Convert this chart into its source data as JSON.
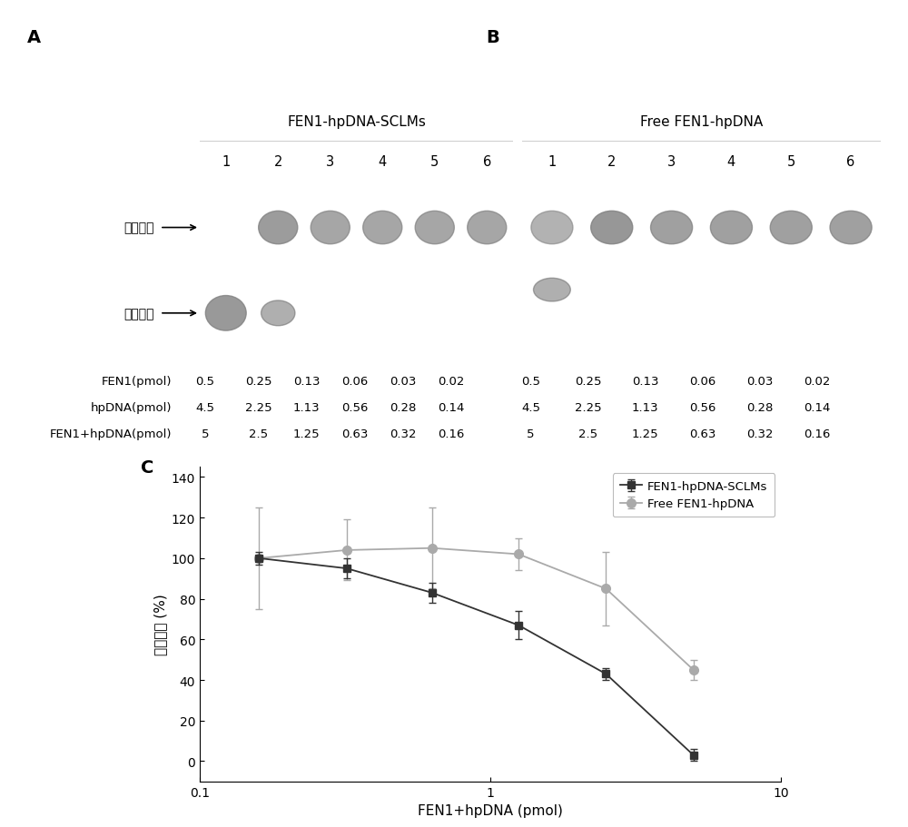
{
  "panel_A_title": "FEN1-hpDNA-SCLMs",
  "panel_B_title": "Free FEN1-hpDNA",
  "lane_labels": [
    "1",
    "2",
    "3",
    "4",
    "5",
    "6"
  ],
  "label_top": "残留底物",
  "label_bottom": "切割产物",
  "table_row_labels": [
    "FEN1(pmol)",
    "hpDNA(pmol)",
    "FEN1+hpDNA(pmol)"
  ],
  "table_A_values": [
    [
      "0.5",
      "0.25",
      "0.13",
      "0.06",
      "0.03",
      "0.02"
    ],
    [
      "4.5",
      "2.25",
      "1.13",
      "0.56",
      "0.28",
      "0.14"
    ],
    [
      "5",
      "2.5",
      "1.25",
      "0.63",
      "0.32",
      "0.16"
    ]
  ],
  "table_B_values": [
    [
      "0.5",
      "0.25",
      "0.13",
      "0.06",
      "0.03",
      "0.02"
    ],
    [
      "4.5",
      "2.25",
      "1.13",
      "0.56",
      "0.28",
      "0.14"
    ],
    [
      "5",
      "2.5",
      "1.25",
      "0.63",
      "0.32",
      "0.16"
    ]
  ],
  "sclm_x": [
    0.16,
    0.32,
    0.63,
    1.25,
    2.5,
    5.0
  ],
  "sclm_y": [
    100,
    95,
    83,
    67,
    43,
    3
  ],
  "sclm_yerr": [
    3,
    5,
    5,
    7,
    3,
    3
  ],
  "free_x": [
    0.16,
    0.32,
    0.63,
    1.25,
    2.5,
    5.0
  ],
  "free_y": [
    100,
    104,
    105,
    102,
    85,
    45
  ],
  "free_yerr": [
    25,
    15,
    20,
    8,
    18,
    5
  ],
  "xlabel": "FEN1+hpDNA (pmol)",
  "ylabel": "剩余底物 (%)",
  "xlim": [
    0.1,
    10
  ],
  "ylim": [
    -10,
    145
  ],
  "yticks": [
    0,
    20,
    40,
    60,
    80,
    100,
    120,
    140
  ],
  "legend_labels": [
    "FEN1-hpDNA-SCLMs",
    "Free FEN1-hpDNA"
  ],
  "gel_bg": "#050505",
  "band_gray": "#808080",
  "band_gray_dim": "#606060"
}
